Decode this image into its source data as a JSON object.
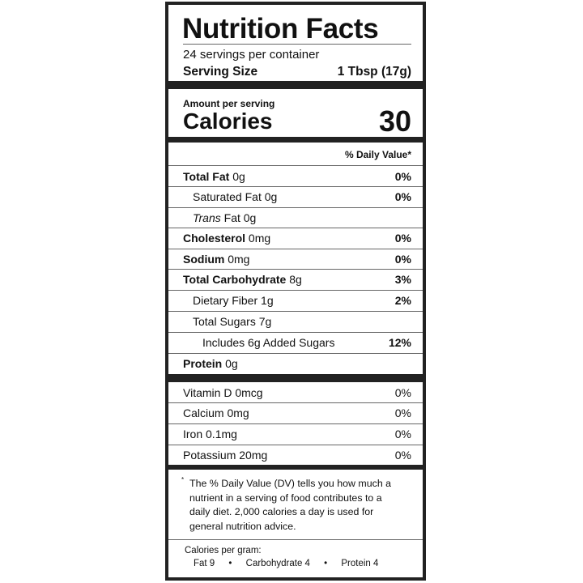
{
  "title": "Nutrition Facts",
  "servings_per_container": "24 servings per container",
  "serving_size_label": "Serving Size",
  "serving_size_value": "1 Tbsp (17g)",
  "amount_per_serving": "Amount per serving",
  "calories_label": "Calories",
  "calories_value": "30",
  "daily_value_header": "% Daily Value*",
  "nutrients": [
    {
      "name": "Total Fat",
      "amount": "0g",
      "dv": "0%"
    },
    {
      "name": "Saturated Fat",
      "amount": "0g",
      "dv": "0%"
    },
    {
      "name": "Trans",
      "name_rest": "Fat",
      "amount": "0g",
      "dv": ""
    },
    {
      "name": "Cholesterol",
      "amount": "0mg",
      "dv": "0%"
    },
    {
      "name": "Sodium",
      "amount": "0mg",
      "dv": "0%"
    },
    {
      "name": "Total Carbohydrate",
      "amount": "8g",
      "dv": "3%"
    },
    {
      "name": "Dietary Fiber",
      "amount": "1g",
      "dv": "2%"
    },
    {
      "name": "Total Sugars",
      "amount": "7g",
      "dv": ""
    },
    {
      "name": "Includes 6g Added Sugars",
      "amount": "",
      "dv": "12%"
    },
    {
      "name": "Protein",
      "amount": "0g",
      "dv": ""
    }
  ],
  "vitamins": [
    {
      "label": "Vitamin D 0mcg",
      "dv": "0%"
    },
    {
      "label": "Calcium 0mg",
      "dv": "0%"
    },
    {
      "label": "Iron 0.1mg",
      "dv": "0%"
    },
    {
      "label": "Potassium 20mg",
      "dv": "0%"
    }
  ],
  "footnote_marker": "*",
  "footnote": "The % Daily Value (DV) tells you how much a nutrient in a serving of food contributes to a daily diet. 2,000 calories a day is used for general nutrition advice.",
  "calories_per_gram_label": "Calories per gram:",
  "calories_per_gram": [
    "Fat 9",
    "Carbohydrate 4",
    "Protein 4"
  ],
  "separator": "•"
}
